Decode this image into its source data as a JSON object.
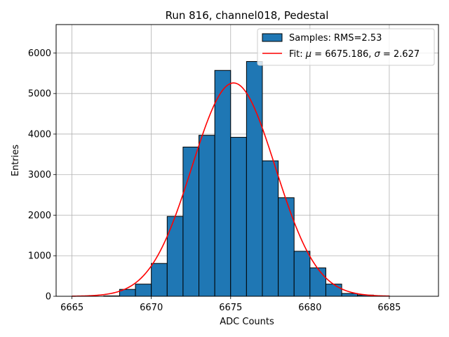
{
  "chart_data": {
    "type": "bar",
    "title": "Run 816, channel018, Pedestal",
    "xlabel": "ADC Counts",
    "ylabel": "Entries",
    "xlim": [
      664.0,
      6688.1
    ],
    "ylim": [
      0,
      6700
    ],
    "xticks": [
      6665,
      6670,
      6675,
      6680,
      6685
    ],
    "yticks": [
      0,
      1000,
      2000,
      3000,
      4000,
      5000,
      6000
    ],
    "grid": true,
    "legend_position": "top-right",
    "histogram": {
      "name": "Samples: RMS=2.53",
      "color": "#1f77b4",
      "edge_color": "#000000",
      "bin_width": 1,
      "bins": [
        {
          "left": 6665,
          "count": 0
        },
        {
          "left": 6666,
          "count": 0
        },
        {
          "left": 6667,
          "count": 10
        },
        {
          "left": 6668,
          "count": 170
        },
        {
          "left": 6669,
          "count": 300
        },
        {
          "left": 6670,
          "count": 810
        },
        {
          "left": 6671,
          "count": 1970
        },
        {
          "left": 6672,
          "count": 3680
        },
        {
          "left": 6673,
          "count": 3970
        },
        {
          "left": 6674,
          "count": 5570
        },
        {
          "left": 6675,
          "count": 3920
        },
        {
          "left": 6676,
          "count": 5790
        },
        {
          "left": 6677,
          "count": 3340
        },
        {
          "left": 6678,
          "count": 2430
        },
        {
          "left": 6679,
          "count": 1110
        },
        {
          "left": 6680,
          "count": 700
        },
        {
          "left": 6681,
          "count": 300
        },
        {
          "left": 6682,
          "count": 70
        },
        {
          "left": 6683,
          "count": 30
        },
        {
          "left": 6684,
          "count": 10
        },
        {
          "left": 6685,
          "count": 0
        },
        {
          "left": 6686,
          "count": 0
        }
      ]
    },
    "fit": {
      "name": "Fit: μ = 6675.186, σ = 2.627",
      "legend_prefix": "Fit: ",
      "legend_mu_symbol": "μ",
      "legend_mu_value": " = 6675.186, ",
      "legend_sigma_symbol": "σ",
      "legend_sigma_value": " = 2.627",
      "color": "#ff0000",
      "mu": 6675.186,
      "sigma": 2.627,
      "amplitude": 5260,
      "x_range": [
        6665,
        6685
      ]
    }
  }
}
